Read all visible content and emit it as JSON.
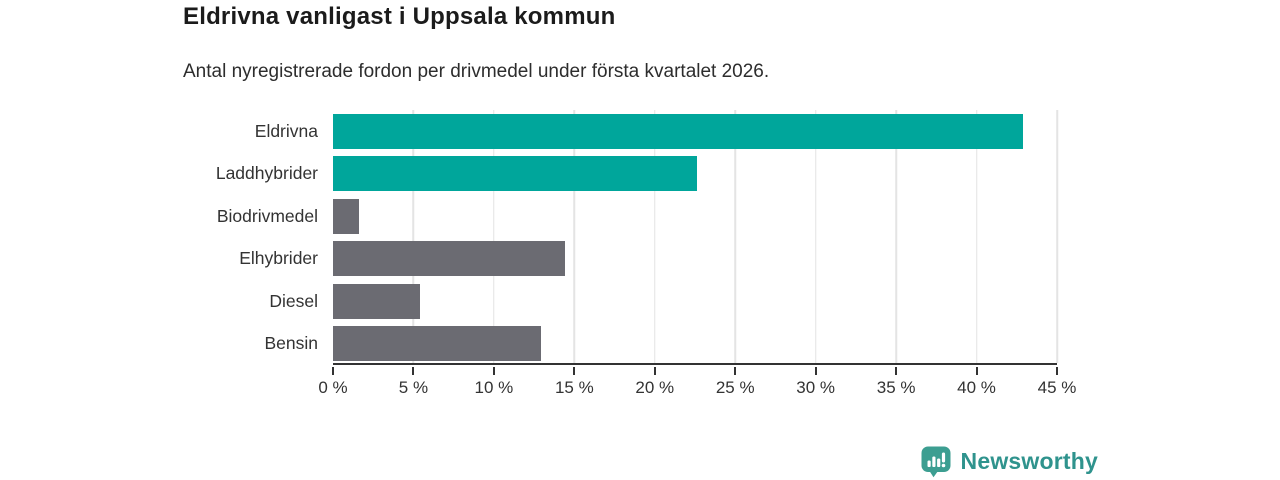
{
  "header": {
    "title": "Eldrivna vanligast i Uppsala kommun",
    "subtitle": "Antal nyregistrerade fordon per drivmedel under första kvartalet 2026."
  },
  "chart_data": {
    "type": "bar",
    "orientation": "horizontal",
    "title": "Eldrivna vanligast i Uppsala kommun",
    "subtitle": "Antal nyregistrerade fordon per drivmedel under första kvartalet 2026.",
    "categories": [
      "Eldrivna",
      "Laddhybrider",
      "Biodrivmedel",
      "Elhybrider",
      "Diesel",
      "Bensin"
    ],
    "values": [
      42.9,
      22.6,
      1.6,
      14.4,
      5.4,
      12.9
    ],
    "unit": "%",
    "bar_colors": [
      "#00a69b",
      "#00a69b",
      "#6b6b72",
      "#6b6b72",
      "#6b6b72",
      "#6b6b72"
    ],
    "xlim": [
      0,
      45
    ],
    "x_ticks": [
      0,
      5,
      10,
      15,
      20,
      25,
      30,
      35,
      40,
      45
    ],
    "x_tick_labels": [
      "0 %",
      "5 %",
      "10 %",
      "15 %",
      "20 %",
      "25 %",
      "30 %",
      "35 %",
      "40 %",
      "45 %"
    ],
    "grid": "vertical-gridlines",
    "gridline_color": "#e4e4e4",
    "axis_color": "#333333",
    "legend": "none"
  },
  "footer": {
    "brand": "Newsworthy",
    "brand_color": "#2f938d",
    "icon_color": "#3c9e91",
    "icon": "newsworthy-speech-bubble-bar-chart-icon"
  }
}
